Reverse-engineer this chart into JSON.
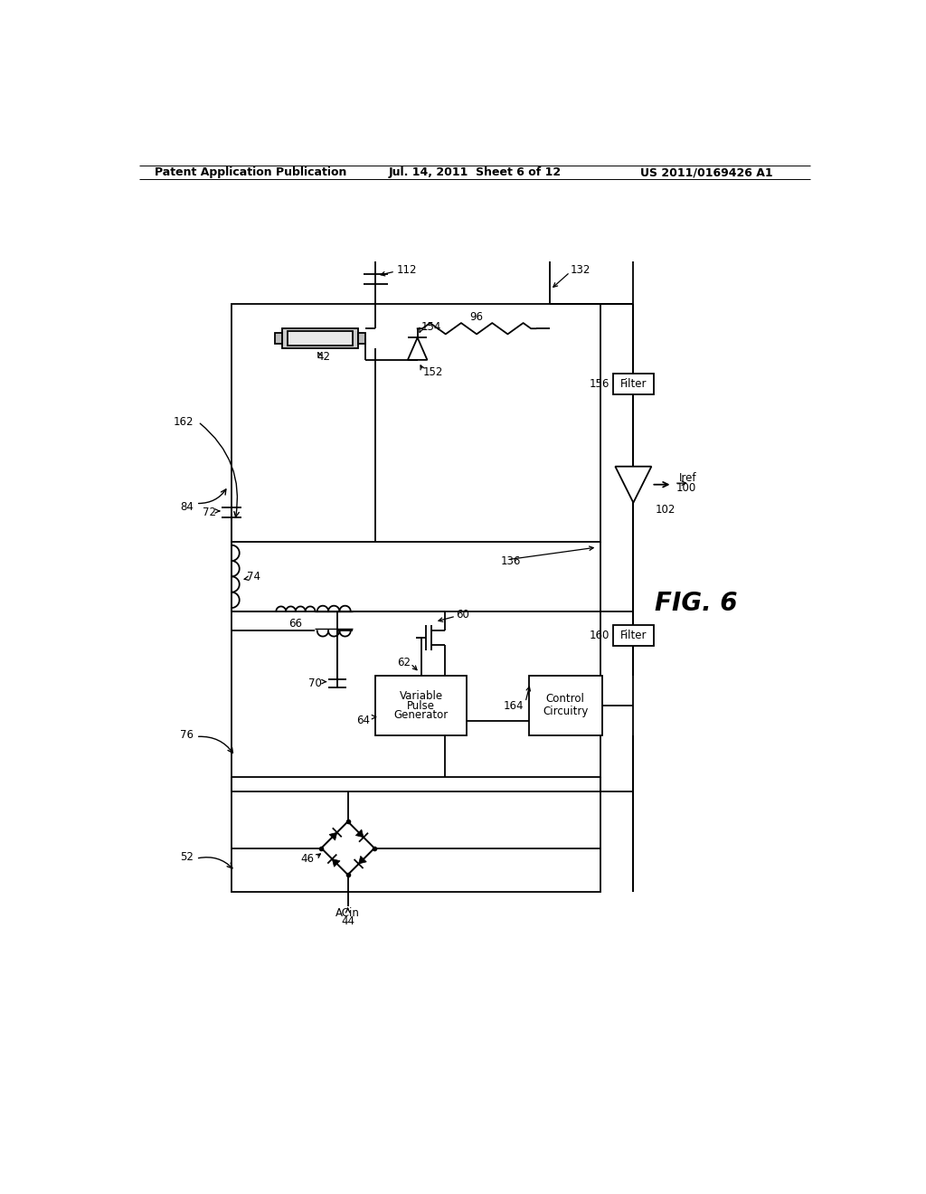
{
  "bg_color": "#ffffff",
  "line_color": "#000000",
  "header_left": "Patent Application Publication",
  "header_mid": "Jul. 14, 2011  Sheet 6 of 12",
  "header_right": "US 2011/0169426 A1",
  "fig_label": "FIG. 6",
  "title_fontsize": 9,
  "label_fontsize": 8.5,
  "fig_label_fontsize": 20
}
